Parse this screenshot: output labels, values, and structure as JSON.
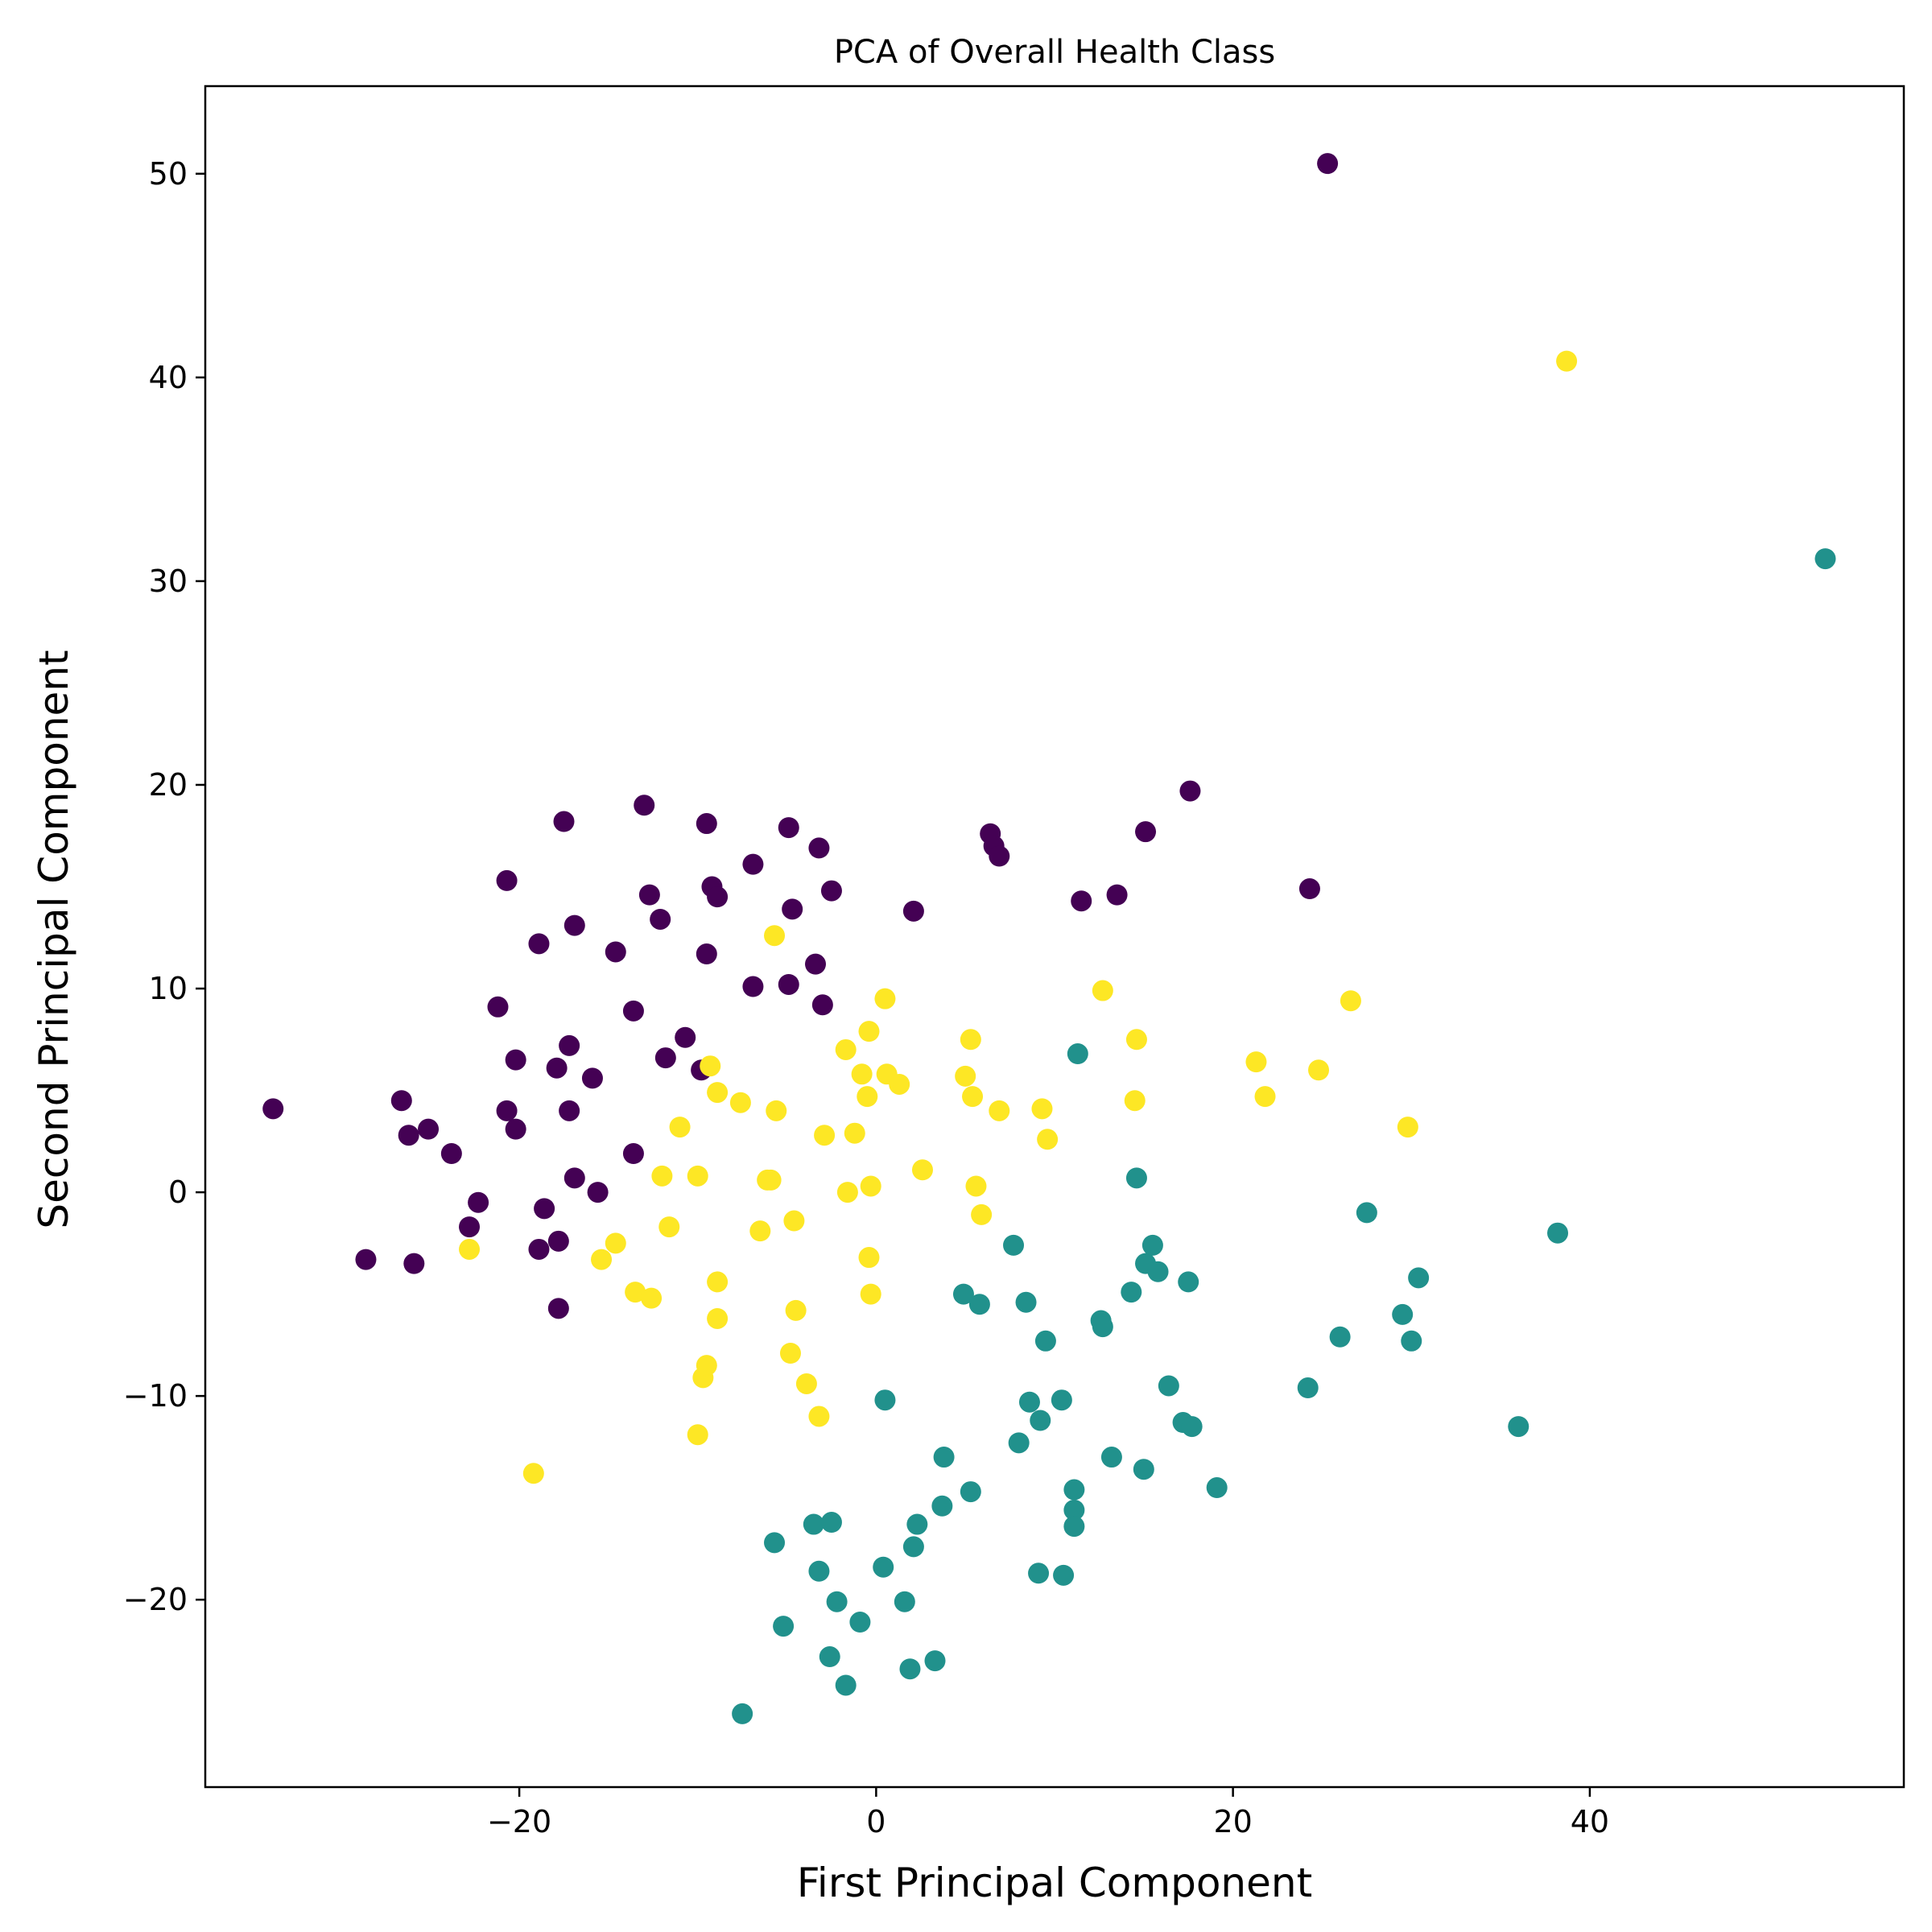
{
  "chart_data": {
    "type": "scatter",
    "title": "PCA of Overall Health Class",
    "xlabel": "First Principal Component",
    "ylabel": "Second Principal Component",
    "xlim": [
      -37.6,
      57.6
    ],
    "ylim": [
      -29.2,
      54.3
    ],
    "xticks": [
      -20,
      0,
      20,
      40
    ],
    "xtick_labels": [
      "−20",
      "0",
      "20",
      "40"
    ],
    "yticks": [
      -20,
      -10,
      0,
      10,
      20,
      30,
      40,
      50
    ],
    "ytick_labels": [
      "−20",
      "−10",
      "0",
      "10",
      "20",
      "30",
      "40",
      "50"
    ],
    "grid": false,
    "series": [
      {
        "color": "#440154",
        "points": [
          [
            -33.8,
            4.1
          ],
          [
            -28.6,
            -3.3
          ],
          [
            -26.6,
            4.5
          ],
          [
            -26.2,
            2.8
          ],
          [
            -25.9,
            -3.5
          ],
          [
            -25.1,
            3.1
          ],
          [
            -23.8,
            1.9
          ],
          [
            -22.8,
            -1.7
          ],
          [
            -22.3,
            -0.5
          ],
          [
            -21.2,
            9.1
          ],
          [
            -20.7,
            15.3
          ],
          [
            -20.7,
            4.0
          ],
          [
            -20.2,
            6.5
          ],
          [
            -20.2,
            3.1
          ],
          [
            -18.9,
            12.2
          ],
          [
            -18.9,
            -2.8
          ],
          [
            -18.6,
            -0.8
          ],
          [
            -17.9,
            6.1
          ],
          [
            -17.8,
            -2.4
          ],
          [
            -17.8,
            -5.7
          ],
          [
            -17.5,
            18.2
          ],
          [
            -17.2,
            7.2
          ],
          [
            -17.2,
            4.0
          ],
          [
            -16.9,
            13.1
          ],
          [
            -16.9,
            0.7
          ],
          [
            -15.9,
            5.6
          ],
          [
            -15.6,
            0.0
          ],
          [
            -14.6,
            11.8
          ],
          [
            -13.6,
            8.9
          ],
          [
            -13.6,
            1.9
          ],
          [
            -13.0,
            19.0
          ],
          [
            -12.7,
            14.6
          ],
          [
            -12.1,
            13.4
          ],
          [
            -11.8,
            6.6
          ],
          [
            -10.7,
            7.6
          ],
          [
            -9.8,
            6.0
          ],
          [
            -9.5,
            18.1
          ],
          [
            -9.5,
            11.7
          ],
          [
            -9.2,
            15.0
          ],
          [
            -8.9,
            14.5
          ],
          [
            -6.9,
            16.1
          ],
          [
            -6.9,
            10.1
          ],
          [
            -4.9,
            17.9
          ],
          [
            -4.9,
            10.2
          ],
          [
            -4.7,
            13.9
          ],
          [
            -3.4,
            11.2
          ],
          [
            -3.2,
            16.9
          ],
          [
            -3.0,
            9.2
          ],
          [
            -2.5,
            14.8
          ],
          [
            2.1,
            13.8
          ],
          [
            6.4,
            17.6
          ],
          [
            6.6,
            17.0
          ],
          [
            6.9,
            16.5
          ],
          [
            11.5,
            14.3
          ],
          [
            13.5,
            14.6
          ],
          [
            15.1,
            17.7
          ],
          [
            17.6,
            19.7
          ],
          [
            24.3,
            14.9
          ],
          [
            25.3,
            50.5
          ]
        ]
      },
      {
        "color": "#21918c",
        "points": [
          [
            -7.5,
            -25.6
          ],
          [
            -5.7,
            -17.2
          ],
          [
            -5.2,
            -21.3
          ],
          [
            -3.5,
            -16.3
          ],
          [
            -3.2,
            -18.6
          ],
          [
            -2.6,
            -22.8
          ],
          [
            -2.5,
            -16.2
          ],
          [
            -2.2,
            -20.1
          ],
          [
            -1.7,
            -24.2
          ],
          [
            -0.9,
            -21.1
          ],
          [
            0.4,
            -18.4
          ],
          [
            0.5,
            -10.2
          ],
          [
            1.6,
            -20.1
          ],
          [
            1.9,
            -23.4
          ],
          [
            2.1,
            -17.4
          ],
          [
            2.3,
            -16.3
          ],
          [
            3.3,
            -23.0
          ],
          [
            3.7,
            -15.4
          ],
          [
            3.8,
            -13.0
          ],
          [
            4.9,
            -5.0
          ],
          [
            5.3,
            -14.7
          ],
          [
            5.8,
            -5.5
          ],
          [
            7.7,
            -2.6
          ],
          [
            8.0,
            -12.3
          ],
          [
            8.4,
            -5.4
          ],
          [
            8.6,
            -10.3
          ],
          [
            9.1,
            -18.7
          ],
          [
            9.2,
            -11.2
          ],
          [
            9.5,
            -7.3
          ],
          [
            10.4,
            -10.2
          ],
          [
            10.5,
            -18.8
          ],
          [
            11.1,
            -14.6
          ],
          [
            11.1,
            -15.6
          ],
          [
            11.1,
            -16.4
          ],
          [
            11.3,
            6.8
          ],
          [
            12.6,
            -6.3
          ],
          [
            12.7,
            -6.6
          ],
          [
            13.2,
            -13.0
          ],
          [
            14.3,
            -4.9
          ],
          [
            14.6,
            0.7
          ],
          [
            15.0,
            -13.6
          ],
          [
            15.1,
            -3.5
          ],
          [
            15.5,
            -2.6
          ],
          [
            15.8,
            -3.9
          ],
          [
            16.4,
            -9.5
          ],
          [
            17.2,
            -11.3
          ],
          [
            17.5,
            -4.4
          ],
          [
            17.7,
            -11.5
          ],
          [
            19.1,
            -14.5
          ],
          [
            24.2,
            -9.6
          ],
          [
            26.0,
            -7.1
          ],
          [
            27.5,
            -1.0
          ],
          [
            29.5,
            -6.0
          ],
          [
            30.0,
            -7.3
          ],
          [
            30.4,
            -4.2
          ],
          [
            36.0,
            -11.5
          ],
          [
            38.2,
            -2.0
          ],
          [
            53.2,
            31.1
          ]
        ]
      },
      {
        "color": "#fde725",
        "points": [
          [
            -22.8,
            -2.8
          ],
          [
            -19.2,
            -13.8
          ],
          [
            -15.4,
            -3.3
          ],
          [
            -14.6,
            -2.5
          ],
          [
            -13.5,
            -4.9
          ],
          [
            -12.6,
            -5.2
          ],
          [
            -12.0,
            0.8
          ],
          [
            -11.6,
            -1.7
          ],
          [
            -11.0,
            3.2
          ],
          [
            -10.0,
            0.8
          ],
          [
            -10.0,
            -11.9
          ],
          [
            -9.7,
            -9.1
          ],
          [
            -9.5,
            -8.5
          ],
          [
            -9.3,
            6.2
          ],
          [
            -8.9,
            4.9
          ],
          [
            -8.9,
            -4.4
          ],
          [
            -8.9,
            -6.2
          ],
          [
            -7.6,
            4.4
          ],
          [
            -6.5,
            -1.9
          ],
          [
            -6.1,
            0.6
          ],
          [
            -5.9,
            0.6
          ],
          [
            -5.7,
            12.6
          ],
          [
            -5.6,
            4.0
          ],
          [
            -4.6,
            -1.4
          ],
          [
            -4.5,
            -5.8
          ],
          [
            -4.8,
            -7.9
          ],
          [
            -3.9,
            -9.4
          ],
          [
            -3.2,
            -11.0
          ],
          [
            -2.9,
            2.8
          ],
          [
            -1.7,
            7.0
          ],
          [
            -1.6,
            0.0
          ],
          [
            -1.2,
            2.9
          ],
          [
            -0.8,
            5.8
          ],
          [
            -0.5,
            4.7
          ],
          [
            -0.4,
            7.9
          ],
          [
            -0.3,
            0.3
          ],
          [
            -0.4,
            -3.2
          ],
          [
            -0.3,
            -5.0
          ],
          [
            0.5,
            9.5
          ],
          [
            0.6,
            5.8
          ],
          [
            1.3,
            5.3
          ],
          [
            2.6,
            1.1
          ],
          [
            5.0,
            5.7
          ],
          [
            5.3,
            7.5
          ],
          [
            5.4,
            4.7
          ],
          [
            5.6,
            0.3
          ],
          [
            5.9,
            -1.1
          ],
          [
            6.9,
            4.0
          ],
          [
            9.3,
            4.1
          ],
          [
            9.6,
            2.6
          ],
          [
            12.7,
            9.9
          ],
          [
            14.5,
            4.5
          ],
          [
            14.6,
            7.5
          ],
          [
            21.3,
            6.4
          ],
          [
            21.8,
            4.7
          ],
          [
            24.8,
            6.0
          ],
          [
            26.6,
            9.4
          ],
          [
            29.8,
            3.2
          ],
          [
            38.7,
            40.8
          ]
        ]
      }
    ]
  }
}
